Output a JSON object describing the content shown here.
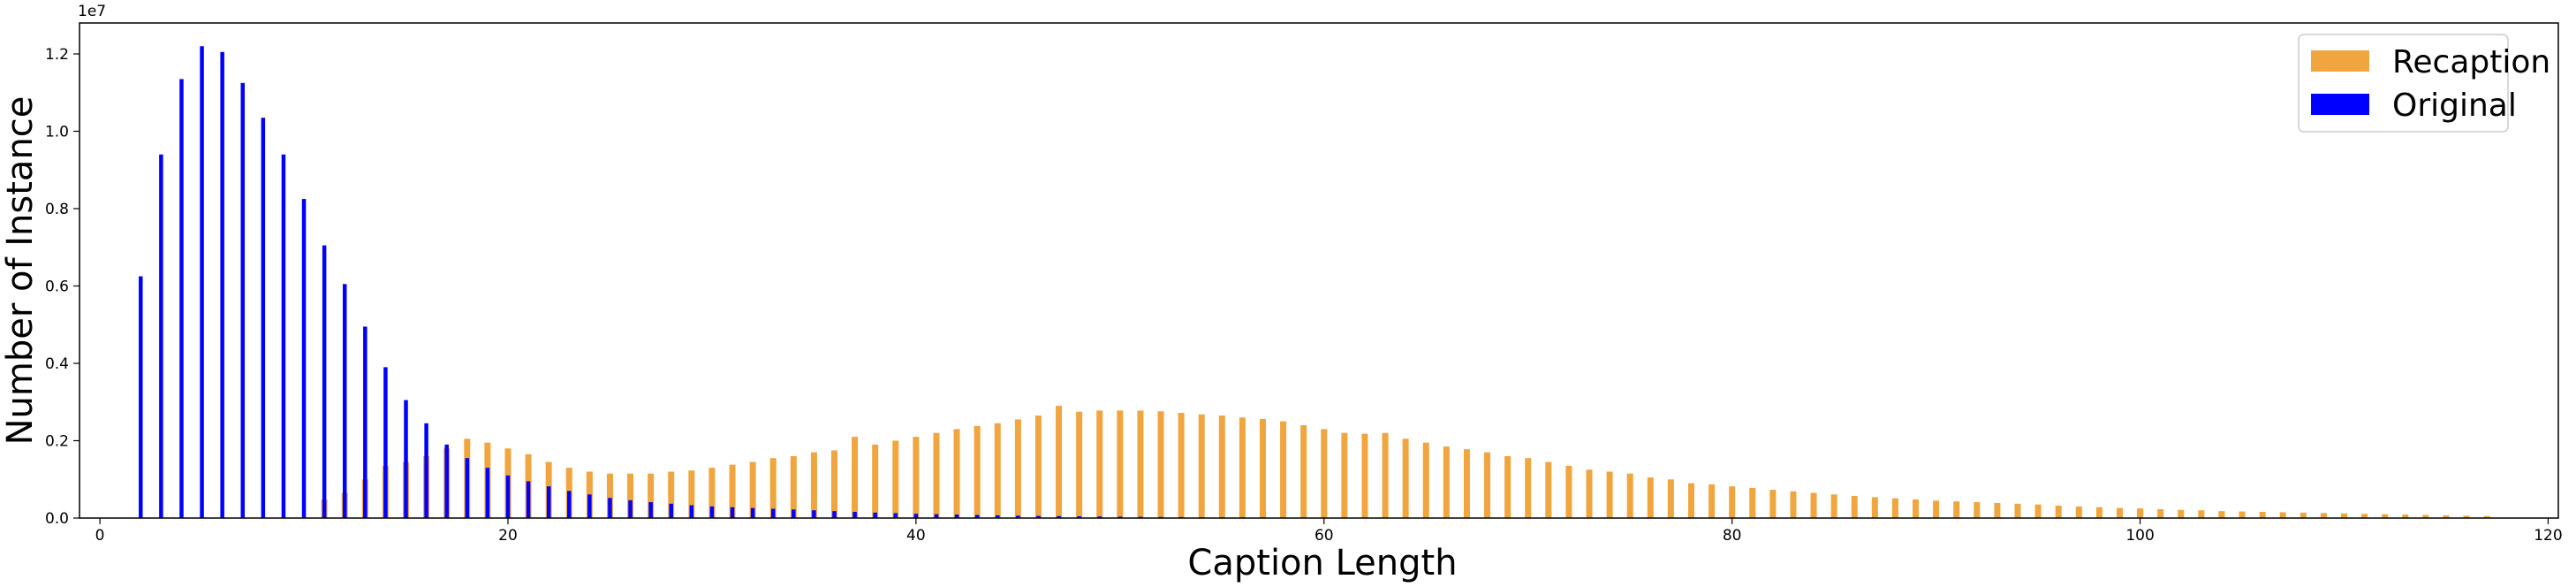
{
  "chart_data": {
    "type": "bar",
    "title": "",
    "xlabel": "Caption Length",
    "ylabel": "Number of Instance",
    "y_offset_label": "1e7",
    "xlim": [
      -1,
      120.5
    ],
    "ylim": [
      0,
      12800000
    ],
    "x_ticks": [
      0,
      20,
      40,
      60,
      80,
      100,
      120
    ],
    "y_ticks": [
      0.0,
      0.2,
      0.4,
      0.6,
      0.8,
      1.0,
      1.2
    ],
    "y_tick_labels": [
      "0.0",
      "0.2",
      "0.4",
      "0.6",
      "0.8",
      "1.0",
      "1.2"
    ],
    "grid": false,
    "legend_position": "top-right",
    "series": [
      {
        "name": "Recaption",
        "color": "#f0a53e",
        "x": [
          11,
          12,
          13,
          14,
          15,
          16,
          17,
          18,
          19,
          20,
          21,
          22,
          23,
          24,
          25,
          26,
          27,
          28,
          29,
          30,
          31,
          32,
          33,
          34,
          35,
          36,
          37,
          38,
          39,
          40,
          41,
          42,
          43,
          44,
          45,
          46,
          47,
          48,
          49,
          50,
          51,
          52,
          53,
          54,
          55,
          56,
          57,
          58,
          59,
          60,
          61,
          62,
          63,
          64,
          65,
          66,
          67,
          68,
          69,
          70,
          71,
          72,
          73,
          74,
          75,
          76,
          77,
          78,
          79,
          80,
          81,
          82,
          83,
          84,
          85,
          86,
          87,
          88,
          89,
          90,
          91,
          92,
          93,
          94,
          95,
          96,
          97,
          98,
          99,
          100,
          101,
          102,
          103,
          104,
          105,
          106,
          107,
          108,
          109,
          110,
          111,
          112,
          113,
          114,
          115,
          116,
          117
        ],
        "values": [
          480000,
          650000,
          1000000,
          1350000,
          1450000,
          1600000,
          1800000,
          2050000,
          1950000,
          1800000,
          1650000,
          1450000,
          1300000,
          1200000,
          1150000,
          1150000,
          1150000,
          1200000,
          1230000,
          1300000,
          1380000,
          1450000,
          1550000,
          1600000,
          1700000,
          1750000,
          2100000,
          1900000,
          2000000,
          2100000,
          2200000,
          2300000,
          2380000,
          2450000,
          2550000,
          2650000,
          2900000,
          2750000,
          2780000,
          2780000,
          2780000,
          2760000,
          2720000,
          2680000,
          2650000,
          2600000,
          2560000,
          2500000,
          2400000,
          2300000,
          2200000,
          2180000,
          2200000,
          2050000,
          1950000,
          1850000,
          1780000,
          1700000,
          1600000,
          1550000,
          1450000,
          1350000,
          1250000,
          1200000,
          1150000,
          1050000,
          1000000,
          900000,
          870000,
          820000,
          780000,
          730000,
          690000,
          650000,
          610000,
          570000,
          540000,
          510000,
          480000,
          450000,
          430000,
          410000,
          390000,
          370000,
          350000,
          320000,
          300000,
          280000,
          260000,
          250000,
          230000,
          210000,
          200000,
          180000,
          170000,
          160000,
          150000,
          140000,
          130000,
          120000,
          110000,
          100000,
          90000,
          80000,
          70000,
          60000,
          50000
        ]
      },
      {
        "name": "Original",
        "color": "#0000ff",
        "x": [
          2,
          3,
          4,
          5,
          6,
          7,
          8,
          9,
          10,
          11,
          12,
          13,
          14,
          15,
          16,
          17,
          18,
          19,
          20,
          21,
          22,
          23,
          24,
          25,
          26,
          27,
          28,
          29,
          30,
          31,
          32,
          33,
          34,
          35,
          36,
          37,
          38,
          39,
          40,
          41,
          42,
          43,
          44,
          45,
          46,
          47,
          48,
          49,
          50,
          51,
          52,
          53,
          54,
          55,
          56,
          57,
          58,
          59,
          60
        ],
        "values": [
          6250000,
          9400000,
          11350000,
          12200000,
          12050000,
          11250000,
          10350000,
          9400000,
          8250000,
          7050000,
          6050000,
          4950000,
          3900000,
          3050000,
          2450000,
          1900000,
          1550000,
          1300000,
          1100000,
          950000,
          820000,
          700000,
          610000,
          520000,
          460000,
          410000,
          370000,
          330000,
          300000,
          280000,
          260000,
          240000,
          220000,
          200000,
          180000,
          160000,
          140000,
          125000,
          110000,
          100000,
          90000,
          80000,
          70000,
          60000,
          55000,
          50000,
          45000,
          40000,
          36000,
          32000,
          28000,
          25000,
          22000,
          20000,
          18000,
          16000,
          14000,
          12000,
          10000
        ]
      }
    ]
  }
}
